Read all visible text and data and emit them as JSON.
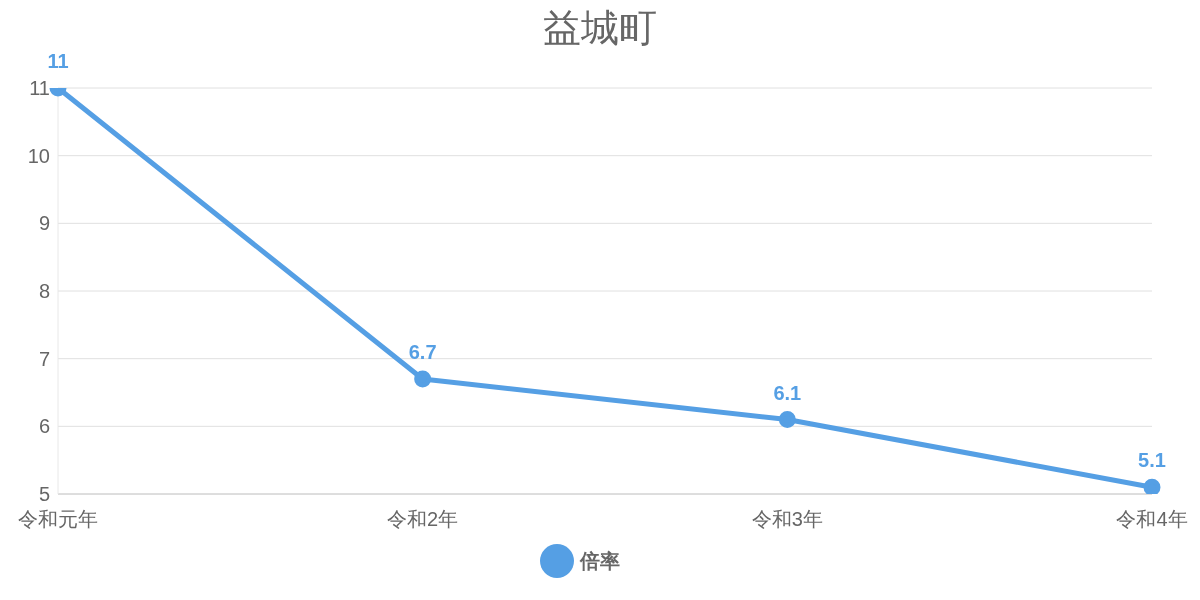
{
  "chart_data": {
    "type": "line",
    "title": "益城町",
    "categories": [
      "令和元年",
      "令和2年",
      "令和3年",
      "令和4年"
    ],
    "series": [
      {
        "name": "倍率",
        "color": "#559fe4",
        "values": [
          11,
          6.7,
          6.1,
          5.1
        ]
      }
    ],
    "ylim": [
      5,
      11
    ],
    "yticks": [
      5,
      6,
      7,
      8,
      9,
      10,
      11
    ],
    "grid": "y",
    "legend": "bottom",
    "data_labels": true,
    "marker": "circle",
    "line_style": "solid"
  }
}
